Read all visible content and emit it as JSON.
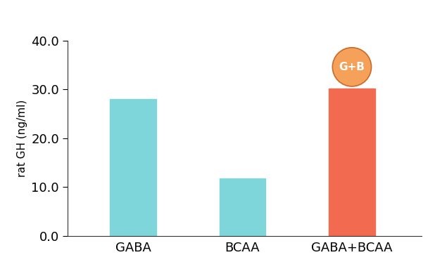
{
  "chart_data": {
    "type": "bar",
    "y_label": "rat GH (ng/ml)",
    "categories": [
      "GABA",
      "BCAA",
      "GABA+BCAA"
    ],
    "values": [
      28.0,
      11.8,
      30.2
    ],
    "colors": [
      "#7ed6da",
      "#7ed6da",
      "#f26a50"
    ],
    "ylim": [
      0,
      40
    ],
    "yticks": [
      {
        "value": 0,
        "label": "0.0"
      },
      {
        "value": 10,
        "label": "10.0"
      },
      {
        "value": 20,
        "label": "20.0"
      },
      {
        "value": 30,
        "label": "30.0"
      },
      {
        "value": 40,
        "label": "40.0"
      }
    ],
    "grid": false,
    "annotations": [
      {
        "text": "G+B",
        "category": "GABA+BCAA"
      }
    ]
  }
}
